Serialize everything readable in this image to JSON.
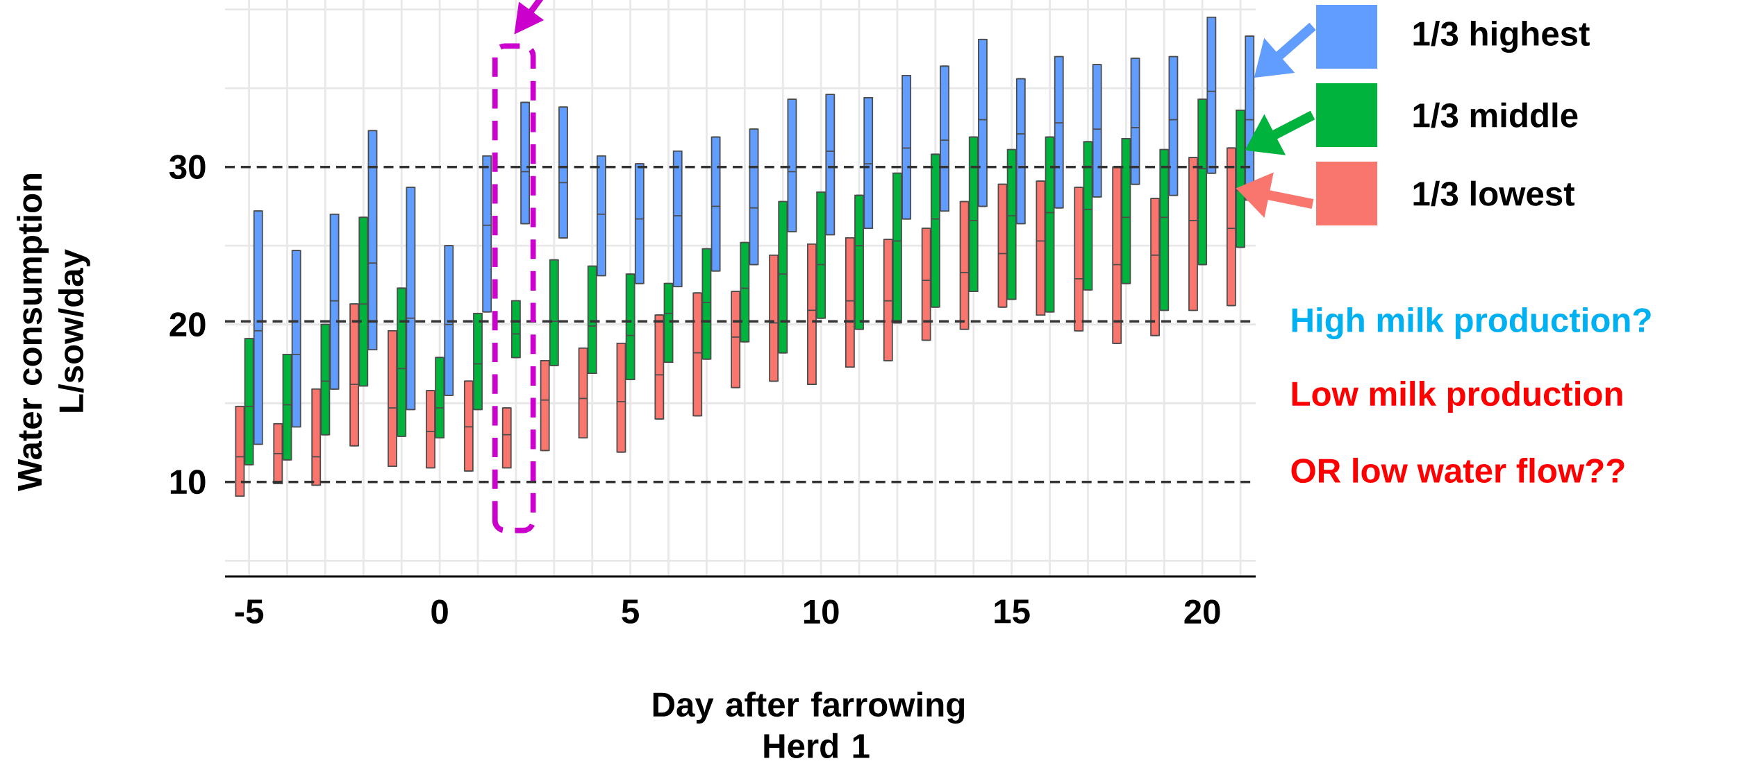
{
  "chart_data": {
    "type": "box",
    "xlabel": "Day after farrowing Herd 1",
    "ylabel": "Water consumption L/sow/day",
    "x": [
      -5,
      -4,
      -3,
      -2,
      -1,
      0,
      1,
      2,
      3,
      4,
      5,
      6,
      7,
      8,
      9,
      10,
      11,
      12,
      13,
      14,
      15,
      16,
      17,
      18,
      19,
      20,
      21
    ],
    "xlim": [
      -5.63,
      21.4
    ],
    "xticks": [
      -5,
      {
        "value": -4,
        "label": null
      },
      {
        "value": -3,
        "label": null
      },
      {
        "value": -2,
        "label": null
      },
      {
        "value": -1,
        "label": null
      },
      0,
      {
        "value": 1,
        "label": null
      },
      {
        "value": 2,
        "label": null
      },
      {
        "value": 3,
        "label": null
      },
      {
        "value": 4,
        "label": null
      },
      5,
      {
        "value": 6,
        "label": null
      },
      {
        "value": 7,
        "label": null
      },
      {
        "value": 8,
        "label": null
      },
      {
        "value": 9,
        "label": null
      },
      10,
      {
        "value": 11,
        "label": null
      },
      {
        "value": 12,
        "label": null
      },
      {
        "value": 13,
        "label": null
      },
      {
        "value": 14,
        "label": null
      },
      15,
      {
        "value": 16,
        "label": null
      },
      {
        "value": 17,
        "label": null
      },
      {
        "value": 18,
        "label": null
      },
      {
        "value": 19,
        "label": null
      },
      20,
      {
        "value": 21,
        "label": null
      }
    ],
    "ylim": [
      4,
      40.6
    ],
    "yticks": [
      10,
      20,
      30
    ],
    "grid": true,
    "legend": "right",
    "series": [
      {
        "name": "1/3 highest",
        "color": "#619cff",
        "boxes": [
          {
            "low": 12.4,
            "q1": 12.4,
            "median": 19.6,
            "q3": 27.2,
            "high": 27.2
          },
          {
            "low": 13.5,
            "q1": 13.5,
            "median": 18.1,
            "q3": 24.7,
            "high": 24.7
          },
          {
            "low": 15.9,
            "q1": 15.9,
            "median": 21.5,
            "q3": 27.0,
            "high": 27.0
          },
          {
            "low": 18.4,
            "q1": 18.4,
            "median": 23.9,
            "q3": 32.3,
            "high": 32.3
          },
          {
            "low": 14.6,
            "q1": 14.6,
            "median": 20.4,
            "q3": 28.7,
            "high": 28.7
          },
          {
            "low": 15.5,
            "q1": 15.5,
            "median": 20.0,
            "q3": 25.0,
            "high": 25.0
          },
          {
            "low": 20.8,
            "q1": 20.8,
            "median": 26.3,
            "q3": 30.7,
            "high": 30.7
          },
          {
            "low": 26.4,
            "q1": 26.4,
            "median": 29.7,
            "q3": 34.1,
            "high": 34.1
          },
          {
            "low": 25.5,
            "q1": 25.5,
            "median": 29.0,
            "q3": 33.8,
            "high": 33.8
          },
          {
            "low": 23.1,
            "q1": 23.1,
            "median": 27.0,
            "q3": 30.7,
            "high": 30.7
          },
          {
            "low": 22.6,
            "q1": 22.6,
            "median": 26.7,
            "q3": 30.2,
            "high": 30.2
          },
          {
            "low": 22.4,
            "q1": 22.4,
            "median": 26.9,
            "q3": 31.0,
            "high": 31.0
          },
          {
            "low": 23.4,
            "q1": 23.4,
            "median": 27.5,
            "q3": 31.9,
            "high": 31.9
          },
          {
            "low": 23.8,
            "q1": 23.8,
            "median": 27.4,
            "q3": 32.4,
            "high": 32.4
          },
          {
            "low": 25.9,
            "q1": 25.9,
            "median": 29.7,
            "q3": 34.3,
            "high": 34.3
          },
          {
            "low": 25.7,
            "q1": 25.7,
            "median": 31.0,
            "q3": 34.6,
            "high": 34.6
          },
          {
            "low": 26.1,
            "q1": 26.1,
            "median": 30.2,
            "q3": 34.4,
            "high": 34.4
          },
          {
            "low": 26.7,
            "q1": 26.7,
            "median": 31.2,
            "q3": 35.8,
            "high": 35.8
          },
          {
            "low": 27.2,
            "q1": 27.2,
            "median": 31.7,
            "q3": 36.4,
            "high": 36.4
          },
          {
            "low": 27.5,
            "q1": 27.5,
            "median": 33.0,
            "q3": 38.1,
            "high": 38.1
          },
          {
            "low": 26.4,
            "q1": 26.4,
            "median": 32.1,
            "q3": 35.6,
            "high": 35.6
          },
          {
            "low": 27.4,
            "q1": 27.4,
            "median": 32.8,
            "q3": 37.0,
            "high": 37.0
          },
          {
            "low": 28.1,
            "q1": 28.1,
            "median": 32.4,
            "q3": 36.5,
            "high": 36.5
          },
          {
            "low": 28.9,
            "q1": 28.9,
            "median": 32.5,
            "q3": 36.9,
            "high": 36.9
          },
          {
            "low": 28.2,
            "q1": 28.2,
            "median": 33.0,
            "q3": 37.0,
            "high": 37.0
          },
          {
            "low": 29.6,
            "q1": 29.6,
            "median": 34.8,
            "q3": 39.5,
            "high": 39.5
          },
          {
            "low": 27.9,
            "q1": 27.9,
            "median": 33.0,
            "q3": 38.3,
            "high": 38.3
          }
        ]
      },
      {
        "name": "1/3 middle",
        "color": "#00b33c",
        "boxes": [
          {
            "low": 11.1,
            "q1": 11.1,
            "median": 14.8,
            "q3": 19.1,
            "high": 19.1
          },
          {
            "low": 11.4,
            "q1": 11.4,
            "median": 14.9,
            "q3": 18.1,
            "high": 18.1
          },
          {
            "low": 13.0,
            "q1": 13.0,
            "median": 16.4,
            "q3": 20.0,
            "high": 20.0
          },
          {
            "low": 16.1,
            "q1": 16.1,
            "median": 21.3,
            "q3": 26.8,
            "high": 26.8
          },
          {
            "low": 12.9,
            "q1": 12.9,
            "median": 17.2,
            "q3": 22.3,
            "high": 22.3
          },
          {
            "low": 12.8,
            "q1": 12.8,
            "median": 14.7,
            "q3": 17.9,
            "high": 17.9
          },
          {
            "low": 14.6,
            "q1": 14.6,
            "median": 17.5,
            "q3": 20.7,
            "high": 20.7
          },
          {
            "low": 17.9,
            "q1": 17.9,
            "median": 19.4,
            "q3": 21.5,
            "high": 21.5
          },
          {
            "low": 17.4,
            "q1": 17.4,
            "median": 20.2,
            "q3": 24.1,
            "high": 24.1
          },
          {
            "low": 16.9,
            "q1": 16.9,
            "median": 19.9,
            "q3": 23.7,
            "high": 23.7
          },
          {
            "low": 16.5,
            "q1": 16.5,
            "median": 19.3,
            "q3": 23.2,
            "high": 23.2
          },
          {
            "low": 17.6,
            "q1": 17.6,
            "median": 20.7,
            "q3": 22.6,
            "high": 22.6
          },
          {
            "low": 17.8,
            "q1": 17.8,
            "median": 21.4,
            "q3": 24.8,
            "high": 24.8
          },
          {
            "low": 18.9,
            "q1": 18.9,
            "median": 22.3,
            "q3": 25.2,
            "high": 25.2
          },
          {
            "low": 18.2,
            "q1": 18.2,
            "median": 23.2,
            "q3": 27.8,
            "high": 27.8
          },
          {
            "low": 20.4,
            "q1": 20.4,
            "median": 23.8,
            "q3": 28.4,
            "high": 28.4
          },
          {
            "low": 19.7,
            "q1": 19.7,
            "median": 25.0,
            "q3": 28.2,
            "high": 28.2
          },
          {
            "low": 20.1,
            "q1": 20.1,
            "median": 25.3,
            "q3": 29.6,
            "high": 29.6
          },
          {
            "low": 21.1,
            "q1": 21.1,
            "median": 26.7,
            "q3": 30.8,
            "high": 30.8
          },
          {
            "low": 22.1,
            "q1": 22.1,
            "median": 26.6,
            "q3": 31.9,
            "high": 31.9
          },
          {
            "low": 21.6,
            "q1": 21.6,
            "median": 26.9,
            "q3": 31.1,
            "high": 31.1
          },
          {
            "low": 20.8,
            "q1": 20.8,
            "median": 27.1,
            "q3": 31.9,
            "high": 31.9
          },
          {
            "low": 22.2,
            "q1": 22.2,
            "median": 27.3,
            "q3": 31.6,
            "high": 31.6
          },
          {
            "low": 22.6,
            "q1": 22.6,
            "median": 26.8,
            "q3": 31.8,
            "high": 31.8
          },
          {
            "low": 20.9,
            "q1": 20.9,
            "median": 26.8,
            "q3": 31.1,
            "high": 31.1
          },
          {
            "low": 23.8,
            "q1": 23.8,
            "median": 29.9,
            "q3": 34.3,
            "high": 34.3
          },
          {
            "low": 24.9,
            "q1": 24.9,
            "median": 28.5,
            "q3": 33.6,
            "high": 33.6
          }
        ]
      },
      {
        "name": "1/3 lowest",
        "color": "#f8766d",
        "boxes": [
          {
            "low": 9.1,
            "q1": 9.1,
            "median": 11.6,
            "q3": 14.8,
            "high": 14.8
          },
          {
            "low": 9.9,
            "q1": 9.9,
            "median": 11.8,
            "q3": 13.7,
            "high": 13.7
          },
          {
            "low": 9.8,
            "q1": 9.8,
            "median": 11.6,
            "q3": 15.9,
            "high": 15.9
          },
          {
            "low": 12.3,
            "q1": 12.3,
            "median": 16.2,
            "q3": 21.3,
            "high": 21.3
          },
          {
            "low": 11.0,
            "q1": 11.0,
            "median": 14.7,
            "q3": 19.6,
            "high": 19.6
          },
          {
            "low": 10.9,
            "q1": 10.9,
            "median": 13.2,
            "q3": 15.8,
            "high": 15.8
          },
          {
            "low": 10.7,
            "q1": 10.7,
            "median": 13.5,
            "q3": 16.4,
            "high": 16.4
          },
          {
            "low": 10.9,
            "q1": 10.9,
            "median": 13.0,
            "q3": 14.7,
            "high": 14.7
          },
          {
            "low": 12.0,
            "q1": 12.0,
            "median": 15.2,
            "q3": 17.7,
            "high": 17.7
          },
          {
            "low": 12.8,
            "q1": 12.8,
            "median": 15.3,
            "q3": 18.5,
            "high": 18.5
          },
          {
            "low": 11.9,
            "q1": 11.9,
            "median": 15.1,
            "q3": 18.8,
            "high": 18.8
          },
          {
            "low": 14.0,
            "q1": 14.0,
            "median": 16.8,
            "q3": 20.6,
            "high": 20.6
          },
          {
            "low": 14.2,
            "q1": 14.2,
            "median": 18.2,
            "q3": 22.0,
            "high": 22.0
          },
          {
            "low": 16.0,
            "q1": 16.0,
            "median": 19.2,
            "q3": 22.1,
            "high": 22.1
          },
          {
            "low": 16.4,
            "q1": 16.4,
            "median": 20.1,
            "q3": 24.4,
            "high": 24.4
          },
          {
            "low": 16.2,
            "q1": 16.2,
            "median": 20.9,
            "q3": 25.1,
            "high": 25.1
          },
          {
            "low": 17.3,
            "q1": 17.3,
            "median": 21.5,
            "q3": 25.5,
            "high": 25.5
          },
          {
            "low": 17.7,
            "q1": 17.7,
            "median": 21.5,
            "q3": 25.4,
            "high": 25.4
          },
          {
            "low": 19.0,
            "q1": 19.0,
            "median": 22.8,
            "q3": 26.1,
            "high": 26.1
          },
          {
            "low": 19.7,
            "q1": 19.7,
            "median": 23.3,
            "q3": 27.8,
            "high": 27.8
          },
          {
            "low": 21.1,
            "q1": 21.1,
            "median": 24.5,
            "q3": 28.9,
            "high": 28.9
          },
          {
            "low": 20.6,
            "q1": 20.6,
            "median": 25.3,
            "q3": 29.1,
            "high": 29.1
          },
          {
            "low": 19.6,
            "q1": 19.6,
            "median": 22.9,
            "q3": 28.7,
            "high": 28.7
          },
          {
            "low": 18.8,
            "q1": 18.8,
            "median": 23.8,
            "q3": 30.0,
            "high": 30.0
          },
          {
            "low": 19.3,
            "q1": 19.3,
            "median": 24.4,
            "q3": 28.0,
            "high": 28.0
          },
          {
            "low": 20.9,
            "q1": 20.9,
            "median": 26.6,
            "q3": 30.6,
            "high": 30.6
          },
          {
            "low": 21.2,
            "q1": 21.2,
            "median": 26.1,
            "q3": 31.2,
            "high": 31.2
          }
        ]
      }
    ],
    "ref_lines": [
      {
        "axis": "y",
        "value": 10,
        "color": "#333333",
        "line_style": "dashed"
      },
      {
        "axis": "y",
        "value": 20.2,
        "color": "#333333",
        "line_style": "dashed"
      },
      {
        "axis": "y",
        "value": 30,
        "color": "#333333",
        "line_style": "dashed"
      }
    ],
    "annotations": [
      "High milk production?",
      "Low milk production",
      "OR low water flow??"
    ]
  }
}
